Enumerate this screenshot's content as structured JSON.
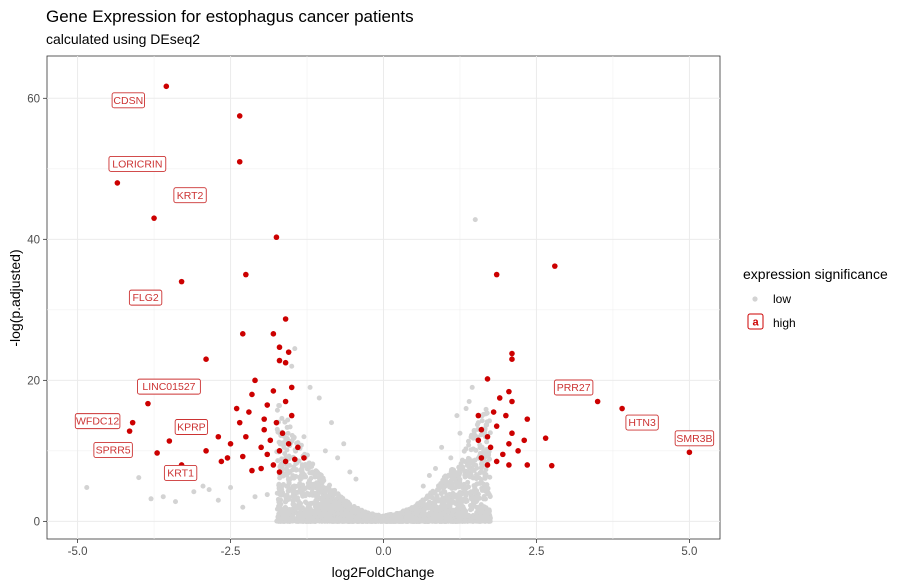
{
  "chart_data": {
    "type": "scatter",
    "title": "Gene Expression for estophagus cancer patients",
    "subtitle": "calculated using DEseq2",
    "xlabel": "log2FoldChange",
    "ylabel": "-log(p.adjusted)",
    "xlim": [
      -5.5,
      5.5
    ],
    "ylim": [
      -2.5,
      66
    ],
    "x_ticks": [
      -5.0,
      -2.5,
      0.0,
      2.5,
      5.0
    ],
    "x_tick_labels": [
      "-5.0",
      "-2.5",
      "0.0",
      "2.5",
      "5.0"
    ],
    "y_ticks": [
      0,
      20,
      40,
      60
    ],
    "y_tick_labels": [
      "0",
      "20",
      "40",
      "60"
    ],
    "grid": true,
    "legend": {
      "title": "expression significance",
      "position": "right",
      "entries": [
        {
          "label": "low",
          "color": "#d3d3d3"
        },
        {
          "label": "high",
          "color": "#cc0000",
          "key_letter": "a"
        }
      ]
    },
    "colors": {
      "low": "#d3d3d3",
      "high": "#cc0000",
      "label": "#cc3333"
    },
    "series": [
      {
        "name": "low",
        "points": [
          [
            -4.85,
            4.8
          ],
          [
            -4.0,
            6.2
          ],
          [
            -3.8,
            3.2
          ],
          [
            -3.6,
            3.5
          ],
          [
            -3.4,
            2.8
          ],
          [
            -3.3,
            7.0
          ],
          [
            -3.1,
            4.2
          ],
          [
            -2.95,
            5.0
          ],
          [
            -2.85,
            4.5
          ],
          [
            -2.7,
            3.0
          ],
          [
            -2.5,
            4.8
          ],
          [
            -2.3,
            2.0
          ],
          [
            -2.1,
            3.5
          ],
          [
            -1.9,
            3.8
          ],
          [
            -1.7,
            4.5
          ],
          [
            -1.6,
            2.8
          ],
          [
            -1.5,
            22.0
          ],
          [
            -1.45,
            24.5
          ],
          [
            -1.3,
            12.0
          ],
          [
            -1.2,
            19.0
          ],
          [
            -1.05,
            17.5
          ],
          [
            -0.95,
            10.0
          ],
          [
            -0.85,
            14.0
          ],
          [
            -0.75,
            9.0
          ],
          [
            -0.65,
            11.0
          ],
          [
            -0.55,
            7.0
          ],
          [
            -0.45,
            6.0
          ],
          [
            1.5,
            42.8
          ],
          [
            1.25,
            12.5
          ],
          [
            1.35,
            16.0
          ],
          [
            1.45,
            19.0
          ],
          [
            1.1,
            9.0
          ],
          [
            0.95,
            10.5
          ],
          [
            0.85,
            7.5
          ],
          [
            0.75,
            6.5
          ],
          [
            0.65,
            5.0
          ],
          [
            1.55,
            14.0
          ],
          [
            1.7,
            10.0
          ],
          [
            1.4,
            17.0
          ],
          [
            1.2,
            15.0
          ]
        ]
      },
      {
        "name": "high",
        "points": [
          [
            -3.55,
            61.7
          ],
          [
            -2.35,
            57.5
          ],
          [
            -2.35,
            51.0
          ],
          [
            -4.35,
            48.0
          ],
          [
            -3.75,
            43.0
          ],
          [
            -1.75,
            40.3
          ],
          [
            -2.25,
            35.0
          ],
          [
            -3.3,
            34.0
          ],
          [
            -1.6,
            28.7
          ],
          [
            -2.3,
            26.6
          ],
          [
            -1.8,
            26.6
          ],
          [
            -1.7,
            24.7
          ],
          [
            -1.55,
            24.0
          ],
          [
            -1.6,
            22.5
          ],
          [
            -1.7,
            22.8
          ],
          [
            -2.9,
            23.0
          ],
          [
            -3.85,
            16.7
          ],
          [
            -4.1,
            14.0
          ],
          [
            -4.15,
            12.8
          ],
          [
            -3.5,
            11.4
          ],
          [
            -3.7,
            9.7
          ],
          [
            -2.9,
            10.0
          ],
          [
            -3.3,
            8.0
          ],
          [
            -2.1,
            20.0
          ],
          [
            -2.15,
            18.0
          ],
          [
            -1.8,
            18.5
          ],
          [
            -1.5,
            19.0
          ],
          [
            -1.6,
            17.0
          ],
          [
            -1.9,
            16.5
          ],
          [
            -2.4,
            16.0
          ],
          [
            -2.2,
            15.5
          ],
          [
            -1.95,
            14.5
          ],
          [
            -1.75,
            14.0
          ],
          [
            -2.35,
            14.0
          ],
          [
            -1.5,
            15.0
          ],
          [
            -1.65,
            12.5
          ],
          [
            -1.85,
            11.5
          ],
          [
            -2.25,
            12.0
          ],
          [
            -2.5,
            11.0
          ],
          [
            -1.55,
            11.0
          ],
          [
            -2.0,
            10.5
          ],
          [
            -1.7,
            10.0
          ],
          [
            -1.9,
            9.5
          ],
          [
            -2.3,
            9.2
          ],
          [
            -2.55,
            9.0
          ],
          [
            -1.6,
            8.5
          ],
          [
            -1.8,
            8.0
          ],
          [
            -2.0,
            7.5
          ],
          [
            -2.15,
            7.2
          ],
          [
            -1.7,
            7.0
          ],
          [
            -1.45,
            8.8
          ],
          [
            -2.65,
            8.5
          ],
          [
            -2.7,
            12.0
          ],
          [
            -1.95,
            13.0
          ],
          [
            -1.4,
            10.5
          ],
          [
            -1.3,
            9.0
          ],
          [
            1.85,
            35.0
          ],
          [
            2.8,
            36.2
          ],
          [
            2.1,
            23.8
          ],
          [
            2.1,
            23.0
          ],
          [
            1.7,
            20.2
          ],
          [
            2.05,
            18.4
          ],
          [
            1.9,
            17.5
          ],
          [
            2.1,
            17.0
          ],
          [
            1.55,
            15.0
          ],
          [
            1.8,
            15.5
          ],
          [
            2.0,
            15.0
          ],
          [
            2.35,
            14.5
          ],
          [
            1.6,
            13.0
          ],
          [
            1.85,
            13.5
          ],
          [
            2.1,
            12.5
          ],
          [
            1.7,
            12.0
          ],
          [
            2.3,
            11.5
          ],
          [
            1.55,
            11.5
          ],
          [
            2.05,
            11.0
          ],
          [
            1.75,
            10.5
          ],
          [
            2.2,
            10.0
          ],
          [
            1.95,
            9.5
          ],
          [
            1.6,
            9.0
          ],
          [
            1.85,
            8.5
          ],
          [
            2.05,
            8.0
          ],
          [
            2.35,
            8.0
          ],
          [
            1.7,
            8.0
          ],
          [
            2.65,
            11.8
          ],
          [
            2.75,
            7.9
          ],
          [
            3.5,
            17.0
          ],
          [
            3.9,
            16.0
          ],
          [
            5.0,
            9.8
          ]
        ]
      }
    ],
    "annotations": [
      {
        "text": "CDSN",
        "x": -3.55,
        "y": 61.7,
        "dx": -38,
        "dy": 14
      },
      {
        "text": "LORICRIN",
        "x": -4.35,
        "y": 48.0,
        "dx": 20,
        "dy": -19
      },
      {
        "text": "KRT2",
        "x": -3.75,
        "y": 43.0,
        "dx": 36,
        "dy": -23
      },
      {
        "text": "FLG2",
        "x": -3.3,
        "y": 34.0,
        "dx": -36,
        "dy": 16
      },
      {
        "text": "LINC01527",
        "x": -3.85,
        "y": 16.7,
        "dx": 21,
        "dy": -17
      },
      {
        "text": "WFDC12",
        "x": -4.15,
        "y": 12.8,
        "dx": -32,
        "dy": -10
      },
      {
        "text": "SPRR5",
        "x": -3.7,
        "y": 9.7,
        "dx": -44,
        "dy": -3
      },
      {
        "text": "KPRP",
        "x": -3.5,
        "y": 11.4,
        "dx": 22,
        "dy": -14
      },
      {
        "text": "KRT1",
        "x": -3.3,
        "y": 8.0,
        "dx": -1,
        "dy": 8
      },
      {
        "text": "PRR27",
        "x": 3.5,
        "y": 17.0,
        "dx": -24,
        "dy": -14
      },
      {
        "text": "HTN3",
        "x": 3.9,
        "y": 16.0,
        "dx": 20,
        "dy": 14
      },
      {
        "text": "SMR3B",
        "x": 5.0,
        "y": 9.8,
        "dx": 5,
        "dy": -14
      }
    ]
  }
}
